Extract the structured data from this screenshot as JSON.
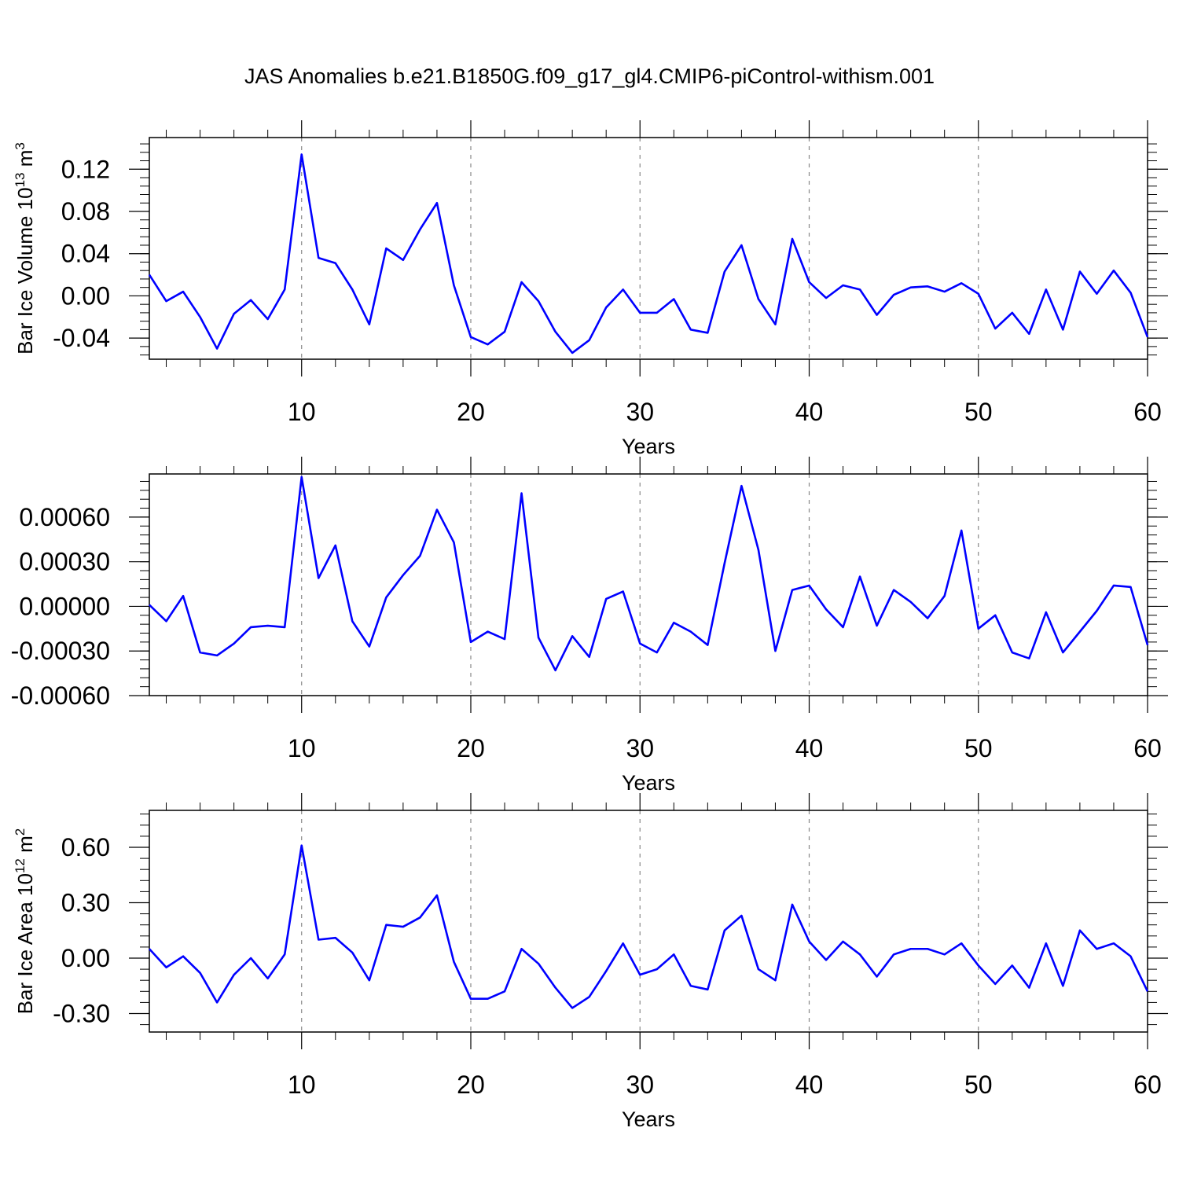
{
  "title": "JAS Anomalies b.e21.B1850G.f09_g17_gl4.CMIP6-piControl-withism.001",
  "colors": {
    "line": "#0000ff",
    "axis": "#000000",
    "grid": "#888888"
  },
  "chart_data": [
    {
      "type": "line",
      "ylabel": "Bar Ice Volume 10",
      "ylabel_exp": "13",
      "ylabel_unit": " m",
      "ylabel_unit_exp": "3",
      "xlabel": "Years",
      "xlim": [
        1,
        60
      ],
      "ylim": [
        -0.06,
        0.15
      ],
      "xticks": [
        10,
        20,
        30,
        40,
        50,
        60
      ],
      "yticks": [
        -0.04,
        0.0,
        0.04,
        0.08,
        0.12
      ],
      "ytick_labels": [
        "-0.04",
        "0.00",
        "0.04",
        "0.08",
        "0.12"
      ],
      "grid": "vertical dashed at major x ticks",
      "x": [
        1,
        2,
        3,
        4,
        5,
        6,
        7,
        8,
        9,
        10,
        11,
        12,
        13,
        14,
        15,
        16,
        17,
        18,
        19,
        20,
        21,
        22,
        23,
        24,
        25,
        26,
        27,
        28,
        29,
        30,
        31,
        32,
        33,
        34,
        35,
        36,
        37,
        38,
        39,
        40,
        41,
        42,
        43,
        44,
        45,
        46,
        47,
        48,
        49,
        50,
        51,
        52,
        53,
        54,
        55,
        56,
        57,
        58,
        59,
        60
      ],
      "series": [
        {
          "values": [
            0.02,
            -0.005,
            0.004,
            -0.02,
            -0.05,
            -0.017,
            -0.004,
            -0.022,
            0.006,
            0.134,
            0.036,
            0.031,
            0.006,
            -0.027,
            0.045,
            0.034,
            0.063,
            0.088,
            0.01,
            -0.039,
            -0.046,
            -0.034,
            0.013,
            -0.005,
            -0.034,
            -0.054,
            -0.042,
            -0.011,
            0.006,
            -0.016,
            -0.016,
            -0.003,
            -0.032,
            -0.035,
            0.023,
            0.048,
            -0.003,
            -0.027,
            0.054,
            0.013,
            -0.002,
            0.01,
            0.006,
            -0.018,
            0.001,
            0.008,
            0.009,
            0.004,
            0.012,
            0.002,
            -0.031,
            -0.016,
            -0.036,
            0.006,
            -0.032,
            0.023,
            0.002,
            0.024,
            0.003,
            -0.039
          ]
        }
      ]
    },
    {
      "type": "line",
      "ylabel": "",
      "xlabel": "Years",
      "xlim": [
        1,
        60
      ],
      "ylim": [
        -0.0006,
        0.00089
      ],
      "xticks": [
        10,
        20,
        30,
        40,
        50,
        60
      ],
      "yticks": [
        -0.0006,
        -0.0003,
        0.0,
        0.0003,
        0.0006
      ],
      "ytick_labels": [
        "-0.00060",
        "-0.00030",
        "0.00000",
        "0.00030",
        "0.00060"
      ],
      "grid": "vertical dashed at major x ticks",
      "x": [
        1,
        2,
        3,
        4,
        5,
        6,
        7,
        8,
        9,
        10,
        11,
        12,
        13,
        14,
        15,
        16,
        17,
        18,
        19,
        20,
        21,
        22,
        23,
        24,
        25,
        26,
        27,
        28,
        29,
        30,
        31,
        32,
        33,
        34,
        35,
        36,
        37,
        38,
        39,
        40,
        41,
        42,
        43,
        44,
        45,
        46,
        47,
        48,
        49,
        50,
        51,
        52,
        53,
        54,
        55,
        56,
        57,
        58,
        59,
        60
      ],
      "series": [
        {
          "values": [
            1e-05,
            -0.0001,
            7e-05,
            -0.00031,
            -0.00033,
            -0.00025,
            -0.00014,
            -0.00013,
            -0.00014,
            0.00087,
            0.00019,
            0.00041,
            -0.0001,
            -0.00027,
            6e-05,
            0.00021,
            0.00034,
            0.00065,
            0.00043,
            -0.00024,
            -0.00017,
            -0.00022,
            0.00076,
            -0.00021,
            -0.00043,
            -0.0002,
            -0.00034,
            5e-05,
            0.0001,
            -0.00025,
            -0.00031,
            -0.00011,
            -0.00017,
            -0.00026,
            0.00029,
            0.00081,
            0.00038,
            -0.0003,
            0.00011,
            0.00014,
            -2e-05,
            -0.00014,
            0.0002,
            -0.00013,
            0.00011,
            3e-05,
            -8e-05,
            7e-05,
            0.00051,
            -0.00015,
            -6e-05,
            -0.00031,
            -0.00035,
            -4e-05,
            -0.00031,
            -0.00017,
            -3e-05,
            0.00014,
            0.00013,
            -0.00026
          ]
        }
      ]
    },
    {
      "type": "line",
      "ylabel": "Bar Ice Area 10",
      "ylabel_exp": "12",
      "ylabel_unit": " m",
      "ylabel_unit_exp": "2",
      "xlabel": "Years",
      "xlim": [
        1,
        60
      ],
      "ylim": [
        -0.4,
        0.8
      ],
      "xticks": [
        10,
        20,
        30,
        40,
        50,
        60
      ],
      "yticks": [
        -0.3,
        0.0,
        0.3,
        0.6
      ],
      "ytick_labels": [
        "-0.30",
        "0.00",
        "0.30",
        "0.60"
      ],
      "grid": "vertical dashed at major x ticks",
      "x": [
        1,
        2,
        3,
        4,
        5,
        6,
        7,
        8,
        9,
        10,
        11,
        12,
        13,
        14,
        15,
        16,
        17,
        18,
        19,
        20,
        21,
        22,
        23,
        24,
        25,
        26,
        27,
        28,
        29,
        30,
        31,
        32,
        33,
        34,
        35,
        36,
        37,
        38,
        39,
        40,
        41,
        42,
        43,
        44,
        45,
        46,
        47,
        48,
        49,
        50,
        51,
        52,
        53,
        54,
        55,
        56,
        57,
        58,
        59,
        60
      ],
      "series": [
        {
          "values": [
            0.05,
            -0.05,
            0.01,
            -0.08,
            -0.24,
            -0.09,
            0.0,
            -0.11,
            0.02,
            0.61,
            0.1,
            0.11,
            0.03,
            -0.12,
            0.18,
            0.17,
            0.22,
            0.34,
            -0.02,
            -0.22,
            -0.22,
            -0.18,
            0.05,
            -0.03,
            -0.16,
            -0.27,
            -0.21,
            -0.07,
            0.08,
            -0.09,
            -0.06,
            0.02,
            -0.15,
            -0.17,
            0.15,
            0.23,
            -0.06,
            -0.12,
            0.29,
            0.09,
            -0.01,
            0.09,
            0.02,
            -0.1,
            0.02,
            0.05,
            0.05,
            0.02,
            0.08,
            -0.04,
            -0.14,
            -0.04,
            -0.16,
            0.08,
            -0.15,
            0.15,
            0.05,
            0.08,
            0.01,
            -0.18
          ]
        }
      ]
    }
  ]
}
